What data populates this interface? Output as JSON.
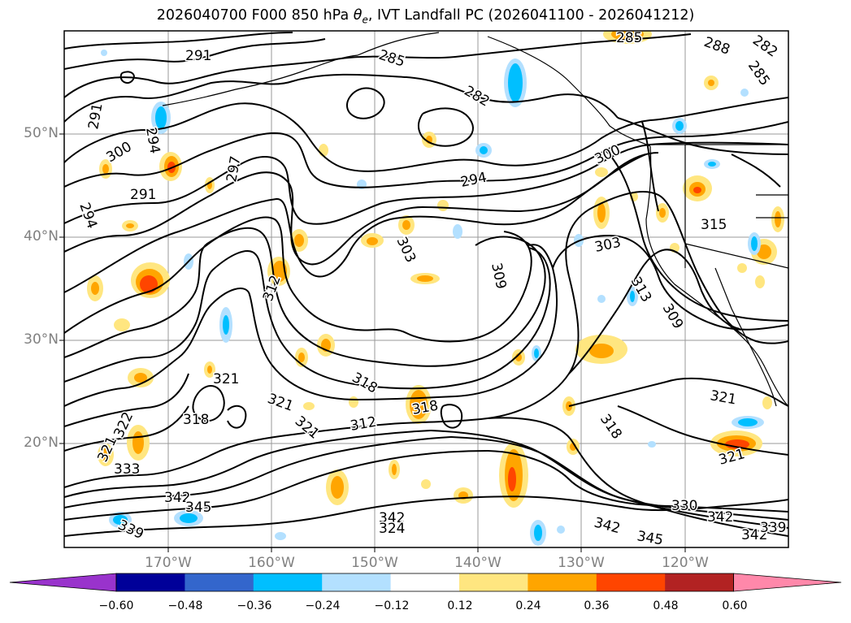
{
  "title_prefix": "2026040700 F000 850 hPa ",
  "title_symbol": "θ",
  "title_symbol_sub": "e",
  "title_suffix": ", IVT Landfall PC (2026041100 - 2026041212)",
  "lat_labels": [
    "50°N",
    "40°N",
    "30°N",
    "20°N"
  ],
  "lon_labels": [
    "170°W",
    "160°W",
    "150°W",
    "140°W",
    "130°W",
    "120°W"
  ],
  "contour_labels": [
    "291",
    "285",
    "285",
    "288",
    "282",
    "285",
    "282",
    "291",
    "294",
    "300",
    "291",
    "297",
    "294",
    "300",
    "294",
    "303",
    "309",
    "303",
    "313",
    "309",
    "315",
    "312",
    "321",
    "318",
    "321",
    "318",
    "321",
    "322",
    "321",
    "312",
    "318",
    "318",
    "321",
    "321",
    "333",
    "342",
    "345",
    "339",
    "342",
    "324",
    "330",
    "342",
    "342",
    "345",
    "342",
    "339"
  ],
  "colorbar": {
    "ticks": [
      "−0.60",
      "−0.48",
      "−0.36",
      "−0.24",
      "−0.12",
      "0.12",
      "0.24",
      "0.36",
      "0.48",
      "0.60"
    ],
    "colors": [
      "#9933cc",
      "#000099",
      "#3366cc",
      "#00bfff",
      "#b3e0ff",
      "#ffffff",
      "#ffe680",
      "#ffa500",
      "#ff4500",
      "#b22222",
      "#ff88aa"
    ]
  }
}
